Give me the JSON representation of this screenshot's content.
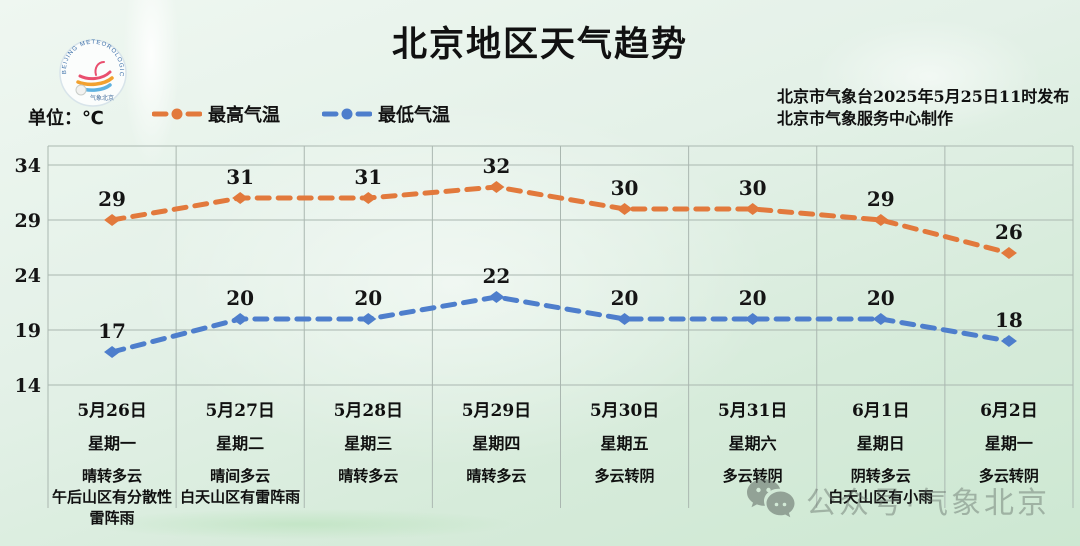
{
  "title": "北京地区天气趋势",
  "unit_label": "单位：℃",
  "legend": {
    "high_label": "最高气温",
    "low_label": "最低气温"
  },
  "publisher": {
    "line1": "北京市气象台2025年5月25日11时发布",
    "line2": "北京市气象服务中心制作"
  },
  "logo": {
    "ring_text": "BEIJING METEOROLOGICAL SERVICE",
    "bottom_text": "气象北京"
  },
  "watermark": {
    "icon": "wechat-icon",
    "text": "公众号·气象北京"
  },
  "colors": {
    "high": "#E2793C",
    "low": "#4E7ECC",
    "grid": "#aab7b0",
    "value_label": "#151515"
  },
  "chart_data": {
    "type": "line",
    "line_style": "dashed",
    "grid": true,
    "legend_position": "top-left",
    "x": [
      "5月26日",
      "5月27日",
      "5月28日",
      "5月29日",
      "5月30日",
      "5月31日",
      "6月1日",
      "6月2日"
    ],
    "series": [
      {
        "name": "最高气温",
        "color_key": "high",
        "values": [
          29,
          31,
          31,
          32,
          30,
          30,
          29,
          26
        ]
      },
      {
        "name": "最低气温",
        "color_key": "low",
        "values": [
          17,
          20,
          20,
          22,
          20,
          20,
          20,
          18
        ]
      }
    ],
    "yticks": [
      34,
      29,
      24,
      19,
      14
    ],
    "ylim": [
      14,
      34
    ],
    "ylabel": "℃"
  },
  "days": [
    {
      "date": "5月26日",
      "week": "星期一",
      "weather": [
        "晴转多云",
        "午后山区有分散性",
        "雷阵雨"
      ]
    },
    {
      "date": "5月27日",
      "week": "星期二",
      "weather": [
        "晴间多云",
        "白天山区有雷阵雨"
      ]
    },
    {
      "date": "5月28日",
      "week": "星期三",
      "weather": [
        "晴转多云"
      ]
    },
    {
      "date": "5月29日",
      "week": "星期四",
      "weather": [
        "晴转多云"
      ]
    },
    {
      "date": "5月30日",
      "week": "星期五",
      "weather": [
        "多云转阴"
      ]
    },
    {
      "date": "5月31日",
      "week": "星期六",
      "weather": [
        "多云转阴"
      ]
    },
    {
      "date": "6月1日",
      "week": "星期日",
      "weather": [
        "阴转多云",
        "白天山区有小雨"
      ]
    },
    {
      "date": "6月2日",
      "week": "星期一",
      "weather": [
        "多云转阴"
      ]
    }
  ]
}
